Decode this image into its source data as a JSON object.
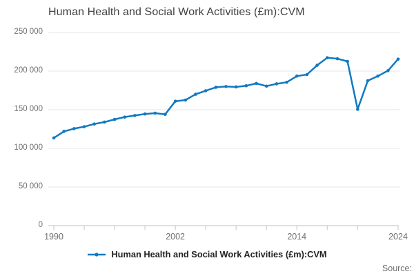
{
  "title": "Human Health and Social Work Activities (£m):CVM",
  "legend": {
    "label": "Human Health and Social Work Activities (£m):CVM"
  },
  "source_label": "Source:",
  "colors": {
    "line": "#1079c2",
    "grid": "#e4e4e4",
    "axis": "#c2cfdd",
    "title_text": "#414042",
    "axis_text": "#6f6f6f",
    "legend_text": "#222222"
  },
  "y_axis": {
    "tick_values": [
      250000,
      200000,
      150000,
      100000,
      50000,
      0
    ],
    "tick_labels": [
      "250 000",
      "200 000",
      "150 000",
      "100 000",
      "50 000",
      "0"
    ]
  },
  "x_axis": {
    "tick_years": [
      1990,
      1993,
      1996,
      1999,
      2002,
      2005,
      2008,
      2011,
      2014,
      2017,
      2020,
      2024
    ],
    "label_years": [
      1990,
      2002,
      2014,
      2024
    ],
    "labels": [
      "1990",
      "2002",
      "2014",
      "2024"
    ]
  },
  "chart_data": {
    "type": "line",
    "title": "Human Health and Social Work Activities (£m):CVM",
    "series_name": "Human Health and Social Work Activities (£m):CVM",
    "xlabel": "",
    "ylabel": "",
    "xlim": [
      1990,
      2024
    ],
    "ylim": [
      0,
      250000
    ],
    "grid": "horizontal",
    "legend_position": "bottom",
    "x": [
      1990,
      1991,
      1992,
      1993,
      1994,
      1995,
      1996,
      1997,
      1998,
      1999,
      2000,
      2001,
      2002,
      2003,
      2004,
      2005,
      2006,
      2007,
      2008,
      2009,
      2010,
      2011,
      2012,
      2013,
      2014,
      2015,
      2016,
      2017,
      2018,
      2019,
      2020,
      2021,
      2022,
      2023,
      2024
    ],
    "values": [
      113500,
      122000,
      125500,
      128000,
      131500,
      134000,
      137500,
      140500,
      142500,
      144500,
      145500,
      144000,
      161000,
      162500,
      170000,
      174500,
      179000,
      180000,
      179500,
      181000,
      184000,
      180500,
      183500,
      185500,
      193500,
      195500,
      207500,
      217300,
      216000,
      212500,
      150500,
      187500,
      193500,
      200500,
      215500
    ]
  }
}
